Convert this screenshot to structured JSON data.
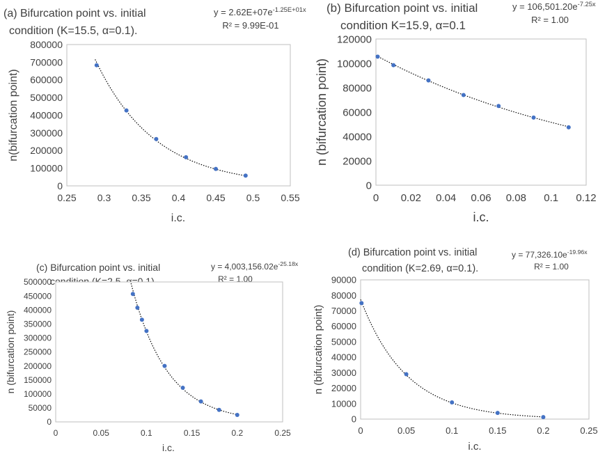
{
  "chart_data": [
    {
      "type": "scatter",
      "title_line1": "(a)   Bifurcation point vs. initial",
      "title_line2": "condition (K=15.5, α=0.1).",
      "equation_base": "y = 2.62E+07e",
      "equation_exp": "-1.25E+01x",
      "r2": "R² = 9.99E-01",
      "xlabel": "i.c.",
      "ylabel": "n(bifurcation point)",
      "xlim": [
        0.25,
        0.55
      ],
      "ylim": [
        0,
        800000
      ],
      "xticks": [
        "0.25",
        "0.3",
        "0.35",
        "0.4",
        "0.45",
        "0.5",
        "0.55"
      ],
      "yticks": [
        "0",
        "100000",
        "200000",
        "300000",
        "400000",
        "500000",
        "600000",
        "700000",
        "800000"
      ],
      "trendline": {
        "type": "exponential",
        "a": 26200000,
        "b": -12.5,
        "x_range": [
          0.288,
          0.49
        ]
      },
      "series": [
        {
          "x": [
            0.29,
            0.33,
            0.37,
            0.41,
            0.45,
            0.49
          ],
          "y": [
            683000,
            427000,
            265000,
            162000,
            96000,
            58000
          ]
        }
      ],
      "grid": false,
      "marker_color": "#4472C4"
    },
    {
      "type": "scatter",
      "title_line1": "(b)   Bifurcation point vs. initial",
      "title_line2": "condition K=15.9, α=0.1",
      "equation_base": "y = 106,501.20e",
      "equation_exp": "-7.25x",
      "r2": "R² = 1.00",
      "xlabel": "i.c.",
      "ylabel": "n (bifurcation point)",
      "xlim": [
        0,
        0.12
      ],
      "ylim": [
        0,
        120000
      ],
      "xticks": [
        "0",
        "0.02",
        "0.04",
        "0.06",
        "0.08",
        "0.1",
        "0.12"
      ],
      "yticks": [
        "0",
        "20000",
        "40000",
        "60000",
        "80000",
        "100000",
        "120000"
      ],
      "trendline": {
        "type": "exponential",
        "a": 106501.2,
        "b": -7.25,
        "x_range": [
          0,
          0.11
        ]
      },
      "series": [
        {
          "x": [
            0.001,
            0.01,
            0.03,
            0.05,
            0.07,
            0.09,
            0.11
          ],
          "y": [
            105500,
            98500,
            86000,
            74000,
            65000,
            55500,
            47500
          ]
        }
      ],
      "grid": false,
      "marker_color": "#4472C4"
    },
    {
      "type": "scatter",
      "title_line1": "(c)   Bifurcation point vs. initial",
      "title_line2": "condition (K=2.5, α=0.1).",
      "equation_base": "y = 4,003,156.02e",
      "equation_exp": "-25.18x",
      "r2": "R² = 1.00",
      "xlabel": "i.c.",
      "ylabel": "n (bifurcation point)",
      "xlim": [
        0,
        0.25
      ],
      "ylim": [
        0,
        500000
      ],
      "xticks": [
        "0",
        "0.05",
        "0.1",
        "0.15",
        "0.2",
        "0.25"
      ],
      "yticks": [
        "0",
        "50000",
        "100000",
        "150000",
        "200000",
        "250000",
        "300000",
        "350000",
        "400000",
        "450000",
        "500000"
      ],
      "trendline": {
        "type": "exponential",
        "a": 4003156.02,
        "b": -25.18,
        "x_range": [
          0.083,
          0.2
        ]
      },
      "series": [
        {
          "x": [
            0.085,
            0.09,
            0.095,
            0.1,
            0.12,
            0.14,
            0.16,
            0.18,
            0.2
          ],
          "y": [
            457000,
            408000,
            365000,
            325000,
            200000,
            122000,
            73000,
            43000,
            25000
          ]
        }
      ],
      "grid": false,
      "marker_color": "#4472C4"
    },
    {
      "type": "scatter",
      "title_line1": "(d)   Bifurcation point vs. initial",
      "title_line2": "condition (K=2.69, α=0.1).",
      "equation_base": "y = 77,326.10e",
      "equation_exp": "-19.96x",
      "r2": "R² = 1.00",
      "xlabel": "i.c.",
      "ylabel": "n (bifurcation point)",
      "xlim": [
        0,
        0.25
      ],
      "ylim": [
        0,
        90000
      ],
      "xticks": [
        "0",
        "0.05",
        "0.1",
        "0.15",
        "0.2",
        "0.25"
      ],
      "yticks": [
        "0",
        "10000",
        "20000",
        "30000",
        "40000",
        "50000",
        "60000",
        "70000",
        "80000",
        "90000"
      ],
      "trendline": {
        "type": "exponential",
        "a": 77326.1,
        "b": -19.96,
        "x_range": [
          0,
          0.2
        ]
      },
      "series": [
        {
          "x": [
            0.001,
            0.05,
            0.1,
            0.15,
            0.2
          ],
          "y": [
            75000,
            29000,
            10800,
            4000,
            1300
          ]
        }
      ],
      "grid": false,
      "marker_color": "#4472C4"
    }
  ]
}
